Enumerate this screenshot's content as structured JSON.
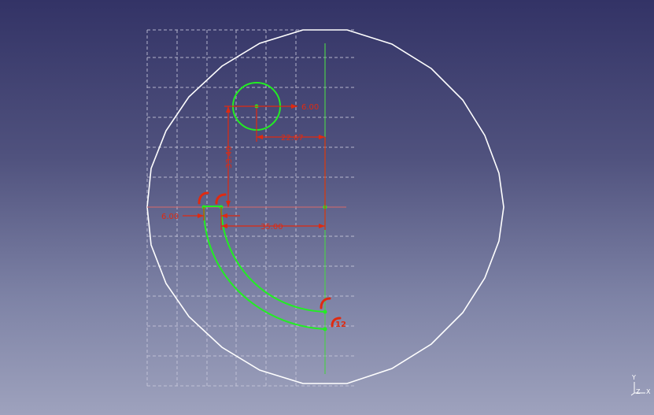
{
  "view": {
    "background_top": "#333366",
    "background_bottom": "#9ea2bd",
    "grid_color": "#c8c8dc",
    "outline_color": "#ffffff",
    "geometry_color": "#22ee22",
    "constraint_color": "#e02a10"
  },
  "dimensions": {
    "radius_small": "6.00",
    "horizontal_offset": "22.67",
    "vertical_offset": "33.40",
    "width_slot": "6.00",
    "horizontal_distance": "35.00"
  },
  "constraint_labels": {
    "tangent_end": "12"
  },
  "axis_cross": {
    "x_label": "X",
    "y_label": "Y",
    "z_label": "Z"
  }
}
